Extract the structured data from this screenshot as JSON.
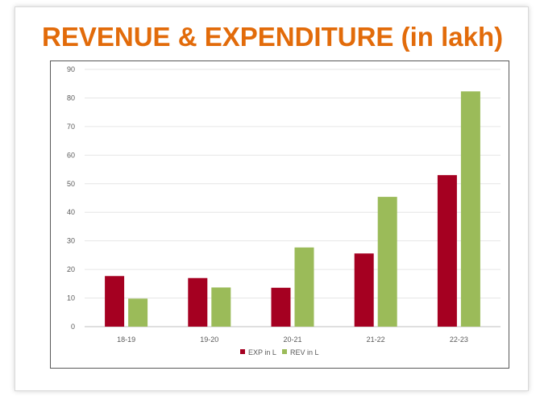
{
  "chart_data": {
    "type": "bar",
    "title": "REVENUE & EXPENDITURE (in lakh)",
    "categories": [
      "18-19",
      "19-20",
      "20-21",
      "21-22",
      "22-23"
    ],
    "series": [
      {
        "name": "EXP in L",
        "values": [
          17.7,
          17.0,
          13.6,
          25.6,
          53.0
        ],
        "color": "#a50021"
      },
      {
        "name": "REV in L",
        "values": [
          9.8,
          13.7,
          27.7,
          45.4,
          82.3
        ],
        "color": "#9bbb59"
      }
    ],
    "xlabel": "",
    "ylabel": "",
    "ylim": [
      0,
      90
    ],
    "yticks": [
      0,
      10,
      20,
      30,
      40,
      50,
      60,
      70,
      80,
      90
    ],
    "grid": true,
    "legend_position": "bottom"
  },
  "colors": {
    "title": "#e26b0a",
    "gridline": "#e6e6e6",
    "axis_text": "#595959"
  }
}
